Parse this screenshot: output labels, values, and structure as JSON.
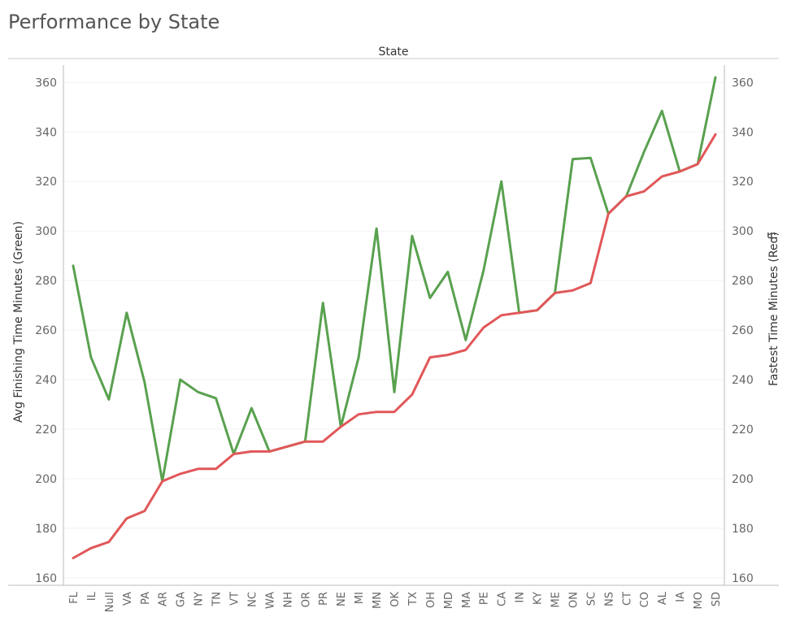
{
  "chart_data": {
    "type": "line",
    "title": "Performance by State",
    "header": "State",
    "xlabel": "",
    "ylabel": "Avg Finishing Time Minutes (Green)",
    "y2label": "Fastest Time Minutes (Red)",
    "sort_icon": "sort-descending-icon",
    "ylim": [
      157,
      367
    ],
    "yticks": [
      160,
      180,
      200,
      220,
      240,
      260,
      280,
      300,
      320,
      340,
      360
    ],
    "categories": [
      "FL",
      "IL",
      "Null",
      "VA",
      "PA",
      "AR",
      "GA",
      "NY",
      "TN",
      "VT",
      "NC",
      "WA",
      "NH",
      "OR",
      "PR",
      "NE",
      "MI",
      "MN",
      "OK",
      "TX",
      "OH",
      "MD",
      "MA",
      "PE",
      "CA",
      "IN",
      "KY",
      "ME",
      "ON",
      "SC",
      "NS",
      "CT",
      "CO",
      "AL",
      "IA",
      "MO",
      "SD"
    ],
    "series": [
      {
        "color": "#59a14f",
        "axis": "left",
        "values": [
          286,
          249,
          232,
          267,
          239,
          199,
          240,
          235,
          232.5,
          210,
          228.5,
          211,
          213,
          215,
          271,
          221,
          249,
          301,
          235,
          298,
          273,
          283.5,
          256,
          284,
          320,
          267,
          268,
          275,
          329,
          329.5,
          307,
          314,
          332,
          348.5,
          324,
          327,
          362
        ]
      },
      {
        "color": "#e15759",
        "axis": "right",
        "values": [
          168,
          172,
          174.5,
          184,
          187,
          199,
          202,
          204,
          204,
          210,
          211,
          211,
          213,
          215,
          215,
          221,
          226,
          227,
          227,
          234,
          249,
          250,
          252,
          261,
          266,
          267,
          268,
          275,
          276,
          279,
          307,
          314,
          316,
          322,
          324,
          327,
          339
        ]
      }
    ],
    "grid": true
  }
}
